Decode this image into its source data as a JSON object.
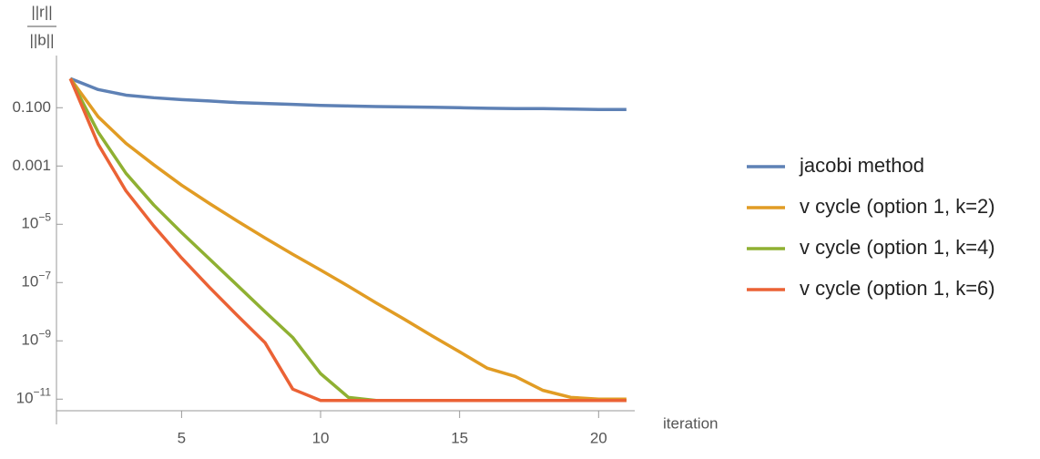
{
  "chart_data": {
    "type": "line",
    "ylabel": {
      "numerator": "||r||",
      "denominator": "||b||"
    },
    "xlabel": "iteration",
    "x": [
      1,
      2,
      3,
      4,
      5,
      6,
      7,
      8,
      9,
      10,
      11,
      12,
      13,
      14,
      15,
      16,
      17,
      18,
      19,
      20,
      21
    ],
    "xlim": [
      0.5,
      21.3
    ],
    "xticks": [
      5,
      10,
      15,
      20
    ],
    "ylim": [
      4e-12,
      3
    ],
    "log_y": true,
    "yticks": [
      {
        "value": 0.1,
        "label": "0.100"
      },
      {
        "value": 0.001,
        "label": "0.001"
      },
      {
        "value": 1e-05,
        "label": "10−5"
      },
      {
        "value": 1e-07,
        "label": "10−7"
      },
      {
        "value": 1e-09,
        "label": "10−9"
      },
      {
        "value": 1e-11,
        "label": "10−11"
      }
    ],
    "legend": "right",
    "series": [
      {
        "name": "jacobi method",
        "color": "#5e81b5",
        "values": [
          1.0,
          0.42,
          0.27,
          0.22,
          0.19,
          0.17,
          0.15,
          0.14,
          0.13,
          0.12,
          0.115,
          0.11,
          0.107,
          0.104,
          0.1,
          0.096,
          0.093,
          0.093,
          0.09,
          0.087,
          0.087
        ]
      },
      {
        "name": "v cycle (option 1, k=2)",
        "color": "#e19c24",
        "values": [
          1.0,
          0.049,
          0.006,
          0.0011,
          0.00022,
          5.2e-05,
          1.3e-05,
          3.4e-06,
          9.3e-07,
          2.7e-07,
          7.5e-08,
          2e-08,
          5.6e-09,
          1.5e-09,
          4.2e-10,
          1.15e-10,
          6e-11,
          2e-11,
          1.15e-11,
          1e-11,
          1e-11
        ]
      },
      {
        "name": "v cycle (option 1, k=4)",
        "color": "#8fb032",
        "values": [
          1.0,
          0.0145,
          0.00056,
          4.6e-05,
          5.2e-06,
          6.5e-07,
          8.1e-08,
          1e-08,
          1.3e-09,
          7.5e-11,
          1.15e-11,
          9e-12,
          9e-12,
          9e-12,
          9e-12,
          9e-12,
          9e-12,
          9e-12,
          9e-12,
          9e-12,
          9e-12
        ]
      },
      {
        "name": "v cycle (option 1, k=6)",
        "color": "#eb6235",
        "values": [
          1.0,
          0.0056,
          0.00014,
          8.7e-06,
          7e-07,
          6.9e-08,
          7.5e-09,
          8.7e-10,
          2.2e-11,
          9e-12,
          9e-12,
          9e-12,
          9e-12,
          9e-12,
          9e-12,
          9e-12,
          9e-12,
          9e-12,
          9e-12,
          9e-12,
          9e-12
        ]
      }
    ]
  }
}
